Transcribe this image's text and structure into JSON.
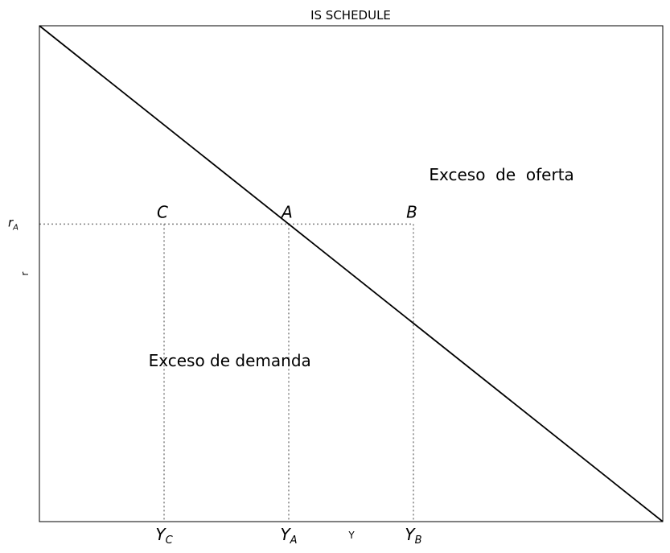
{
  "chart_data": {
    "type": "line",
    "title": "IS SCHEDULE",
    "xlabel": "Y",
    "ylabel": "r",
    "xlim": [
      0,
      10
    ],
    "ylim": [
      0,
      8
    ],
    "grid": false,
    "legend": "none",
    "series": [
      {
        "x": [
          0,
          10
        ],
        "y": [
          8,
          0
        ]
      }
    ],
    "r_A": 4.8,
    "points": [
      {
        "label": "C",
        "x": 2,
        "y": 4.8
      },
      {
        "label": "A",
        "x": 4,
        "y": 4.8
      },
      {
        "label": "B",
        "x": 6,
        "y": 4.8
      }
    ],
    "xticks": [
      {
        "base": "Y",
        "sub": "C",
        "x": 2
      },
      {
        "base": "Y",
        "sub": "A",
        "x": 4
      },
      {
        "base": "Y",
        "sub": "B",
        "x": 6
      }
    ],
    "yticks": [
      {
        "base": "r",
        "sub": "A",
        "y": 4.8
      }
    ],
    "annotations": [
      {
        "text": "Exceso  de  oferta",
        "x": 6.25,
        "y": 5.6
      },
      {
        "text": "Exceso de demanda",
        "x": 1.75,
        "y": 2.6
      }
    ],
    "line_color": "#000000",
    "guide_color": "#808080"
  }
}
